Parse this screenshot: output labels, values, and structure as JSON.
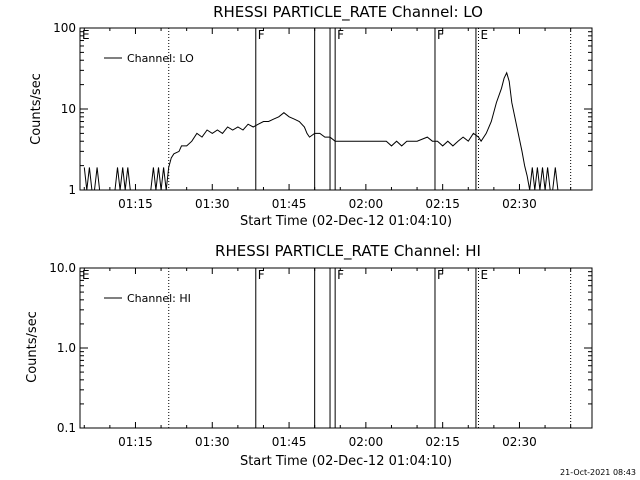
{
  "chart_data": [
    {
      "type": "line",
      "title": "RHESSI PARTICLE_RATE Channel: LO",
      "xlabel": "Start Time (02-Dec-12 01:04:10)",
      "ylabel": "Counts/sec",
      "y_scale": "log",
      "ylim": [
        1,
        100
      ],
      "y_ticks": [
        1,
        10,
        100
      ],
      "y_tick_labels": [
        "1",
        "10",
        "100"
      ],
      "xlim": [
        "01:04:10",
        "02:44:10"
      ],
      "x_ticks": [
        "01:15",
        "01:30",
        "01:45",
        "02:00",
        "02:15",
        "02:30"
      ],
      "legend": {
        "position": "top-left",
        "entries": [
          "Channel: LO"
        ]
      },
      "series": [
        {
          "name": "Channel: LO",
          "points": [
            [
              "01:05:00",
              1.9
            ],
            [
              "01:05:30",
              1.0
            ],
            [
              "01:06:00",
              1.9
            ],
            [
              "01:06:30",
              1.0
            ],
            [
              "01:07:00",
              1.0
            ],
            [
              "01:07:30",
              1.9
            ],
            [
              "01:08:00",
              1.0
            ],
            [
              "01:09:00",
              1.0
            ],
            [
              "01:10:00",
              1.0
            ],
            [
              "01:11:00",
              1.0
            ],
            [
              "01:11:30",
              1.9
            ],
            [
              "01:12:00",
              1.0
            ],
            [
              "01:12:30",
              1.9
            ],
            [
              "01:13:00",
              1.0
            ],
            [
              "01:13:30",
              1.9
            ],
            [
              "01:14:00",
              1.0
            ],
            [
              "01:15:00",
              1.0
            ],
            [
              "01:16:00",
              1.0
            ],
            [
              "01:17:00",
              1.0
            ],
            [
              "01:18:00",
              1.0
            ],
            [
              "01:18:30",
              1.9
            ],
            [
              "01:19:00",
              1.0
            ],
            [
              "01:19:30",
              1.9
            ],
            [
              "01:20:00",
              1.0
            ],
            [
              "01:20:30",
              1.9
            ],
            [
              "01:21:00",
              1.0
            ],
            [
              "01:21:30",
              1.9
            ],
            [
              "01:22:00",
              2.5
            ],
            [
              "01:22:30",
              2.8
            ],
            [
              "01:23:30",
              3.0
            ],
            [
              "01:24:00",
              3.5
            ],
            [
              "01:25:00",
              3.5
            ],
            [
              "01:26:00",
              4.0
            ],
            [
              "01:27:00",
              5.0
            ],
            [
              "01:28:00",
              4.5
            ],
            [
              "01:29:00",
              5.5
            ],
            [
              "01:30:00",
              5.0
            ],
            [
              "01:31:00",
              5.5
            ],
            [
              "01:32:00",
              5.0
            ],
            [
              "01:33:00",
              6.0
            ],
            [
              "01:34:00",
              5.5
            ],
            [
              "01:35:00",
              6.0
            ],
            [
              "01:36:00",
              5.5
            ],
            [
              "01:37:00",
              6.5
            ],
            [
              "01:38:00",
              6.0
            ],
            [
              "01:39:00",
              6.5
            ],
            [
              "01:40:00",
              7.0
            ],
            [
              "01:41:00",
              7.0
            ],
            [
              "01:42:00",
              7.5
            ],
            [
              "01:43:00",
              8.0
            ],
            [
              "01:44:00",
              9.0
            ],
            [
              "01:45:00",
              8.0
            ],
            [
              "01:46:00",
              7.5
            ],
            [
              "01:47:00",
              7.0
            ],
            [
              "01:48:00",
              6.0
            ],
            [
              "01:48:30",
              5.0
            ],
            [
              "01:49:00",
              4.5
            ],
            [
              "01:50:00",
              5.0
            ],
            [
              "01:51:00",
              5.0
            ],
            [
              "01:52:00",
              4.5
            ],
            [
              "01:53:00",
              4.5
            ],
            [
              "01:54:00",
              4.0
            ],
            [
              "01:56:00",
              4.0
            ],
            [
              "01:58:00",
              4.0
            ],
            [
              "02:00:00",
              4.0
            ],
            [
              "02:02:00",
              4.0
            ],
            [
              "02:04:00",
              4.0
            ],
            [
              "02:05:00",
              3.5
            ],
            [
              "02:06:00",
              4.0
            ],
            [
              "02:07:00",
              3.5
            ],
            [
              "02:08:00",
              4.0
            ],
            [
              "02:10:00",
              4.0
            ],
            [
              "02:12:00",
              4.5
            ],
            [
              "02:13:00",
              4.0
            ],
            [
              "02:14:00",
              4.0
            ],
            [
              "02:15:00",
              3.5
            ],
            [
              "02:16:00",
              4.0
            ],
            [
              "02:17:00",
              3.5
            ],
            [
              "02:18:00",
              4.0
            ],
            [
              "02:19:00",
              4.5
            ],
            [
              "02:20:00",
              4.0
            ],
            [
              "02:21:00",
              5.0
            ],
            [
              "02:22:00",
              4.5
            ],
            [
              "02:22:30",
              4.0
            ],
            [
              "02:23:30",
              5.0
            ],
            [
              "02:24:30",
              7.0
            ],
            [
              "02:25:30",
              12.0
            ],
            [
              "02:26:30",
              18.0
            ],
            [
              "02:27:00",
              24.0
            ],
            [
              "02:27:30",
              28.0
            ],
            [
              "02:28:00",
              22.0
            ],
            [
              "02:28:30",
              12.0
            ],
            [
              "02:29:30",
              6.0
            ],
            [
              "02:30:30",
              3.0
            ],
            [
              "02:31:00",
              2.0
            ],
            [
              "02:31:30",
              1.5
            ],
            [
              "02:32:00",
              1.0
            ],
            [
              "02:32:30",
              1.9
            ],
            [
              "02:33:00",
              1.0
            ],
            [
              "02:33:30",
              1.9
            ],
            [
              "02:34:00",
              1.0
            ],
            [
              "02:34:30",
              1.9
            ],
            [
              "02:35:00",
              1.0
            ],
            [
              "02:35:30",
              1.9
            ],
            [
              "02:36:00",
              1.0
            ],
            [
              "02:36:30",
              1.0
            ],
            [
              "02:37:00",
              1.9
            ],
            [
              "02:37:30",
              1.0
            ],
            [
              "02:38:00",
              1.0
            ],
            [
              "02:39:00",
              1.0
            ]
          ]
        }
      ],
      "markers": [
        {
          "time": "01:04:10",
          "label": "E",
          "style": "none"
        },
        {
          "time": "01:21:30",
          "label": "",
          "style": "dotted"
        },
        {
          "time": "01:38:30",
          "label": "F",
          "style": "solid"
        },
        {
          "time": "01:50:00",
          "label": "",
          "style": "solid"
        },
        {
          "time": "01:53:00",
          "label": "",
          "style": "solid"
        },
        {
          "time": "01:54:00",
          "label": "F",
          "style": "solid"
        },
        {
          "time": "02:13:30",
          "label": "F",
          "style": "solid"
        },
        {
          "time": "02:21:30",
          "label": "",
          "style": "solid"
        },
        {
          "time": "02:22:00",
          "label": "E",
          "style": "dotted"
        },
        {
          "time": "02:40:00",
          "label": "",
          "style": "dotted"
        }
      ]
    },
    {
      "type": "line",
      "title": "RHESSI PARTICLE_RATE Channel: HI",
      "xlabel": "Start Time (02-Dec-12 01:04:10)",
      "ylabel": "Counts/sec",
      "y_scale": "log",
      "ylim": [
        0.1,
        10
      ],
      "y_ticks": [
        0.1,
        1,
        10
      ],
      "y_tick_labels": [
        "0.1",
        "1.0",
        "10.0"
      ],
      "xlim": [
        "01:04:10",
        "02:44:10"
      ],
      "x_ticks": [
        "01:15",
        "01:30",
        "01:45",
        "02:00",
        "02:15",
        "02:30"
      ],
      "legend": {
        "position": "top-left",
        "entries": [
          "Channel: HI"
        ]
      },
      "series": [
        {
          "name": "Channel: HI",
          "points": []
        }
      ],
      "markers": [
        {
          "time": "01:04:10",
          "label": "E",
          "style": "none"
        },
        {
          "time": "01:21:30",
          "label": "",
          "style": "dotted"
        },
        {
          "time": "01:38:30",
          "label": "F",
          "style": "solid"
        },
        {
          "time": "01:50:00",
          "label": "",
          "style": "solid"
        },
        {
          "time": "01:53:00",
          "label": "",
          "style": "solid"
        },
        {
          "time": "01:54:00",
          "label": "F",
          "style": "solid"
        },
        {
          "time": "02:13:30",
          "label": "F",
          "style": "solid"
        },
        {
          "time": "02:21:30",
          "label": "",
          "style": "solid"
        },
        {
          "time": "02:22:00",
          "label": "E",
          "style": "dotted"
        },
        {
          "time": "02:40:00",
          "label": "",
          "style": "dotted"
        }
      ]
    }
  ],
  "footer": {
    "timestamp": "21-Oct-2021 08:43"
  }
}
